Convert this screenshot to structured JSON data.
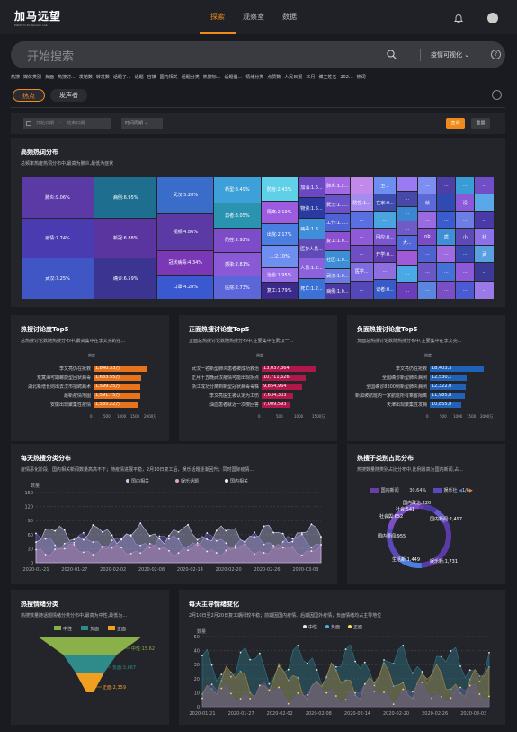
{
  "header": {
    "logo": "加马远望",
    "logo_sub": "Platform for Opinion Lab",
    "nav": [
      "探索",
      "观察室",
      "数据"
    ]
  },
  "search": {
    "placeholder": "开始搜索",
    "scope": "疫情可视化"
  },
  "hotwords": [
    "热搜",
    "媒体类别",
    "负面",
    "热搜讨...",
    "发地数",
    "转发数",
    "话题子...",
    "话题",
    "官媒",
    "国内相关",
    "话题分类",
    "热搜标...",
    "话题倡...",
    "情绪分类",
    "点赞数",
    "人民日报",
    "本月",
    "博主姓名",
    "202...",
    "热词"
  ],
  "tabs": [
    "热点",
    "发声者"
  ],
  "filters": {
    "start": "开始日期",
    "end": "结束日期",
    "period": "时间周期",
    "query": "查询",
    "reset": "重置"
  },
  "treemap": {
    "title": "高频热词分布",
    "subtitle": "总频率热度热词分布中,最高为肺炎,最低为症状",
    "cells": [
      {
        "t": "肺炎:9.06%",
        "x": 0,
        "y": 0,
        "w": 15.4,
        "h": 33.5,
        "c": "#5b3aa6"
      },
      {
        "t": "疫情:7.74%",
        "x": 0,
        "y": 33.5,
        "w": 15.4,
        "h": 33,
        "c": "#4a3bb0"
      },
      {
        "t": "武汉:7.25%",
        "x": 0,
        "y": 66.5,
        "w": 15.4,
        "h": 33.5,
        "c": "#3f56c4"
      },
      {
        "t": "病例:6.95%",
        "x": 15.4,
        "y": 0,
        "w": 13.4,
        "h": 33.5,
        "c": "#1e6f8f"
      },
      {
        "t": "新冠:6.88%",
        "x": 15.4,
        "y": 33.5,
        "w": 13.4,
        "h": 33,
        "c": "#5a35a0"
      },
      {
        "t": "确诊:6.59%",
        "x": 15.4,
        "y": 66.5,
        "w": 13.4,
        "h": 33.5,
        "c": "#3b3490"
      },
      {
        "t": "武汉:5.20%",
        "x": 28.8,
        "y": 0,
        "w": 11.9,
        "h": 30,
        "c": "#3a6cc9"
      },
      {
        "t": "视频:4.86%",
        "x": 28.8,
        "y": 30,
        "w": 11.9,
        "h": 30,
        "c": "#5b3aa6"
      },
      {
        "t": "冠状病毒:4.34%",
        "x": 28.8,
        "y": 60,
        "w": 11.9,
        "h": 20,
        "c": "#7a38b6"
      },
      {
        "t": "口罩:4.28%",
        "x": 28.8,
        "y": 80,
        "w": 11.9,
        "h": 20,
        "c": "#3a58d0"
      },
      {
        "t": "新型:3.49%",
        "x": 40.7,
        "y": 0,
        "w": 10,
        "h": 21,
        "c": "#3ea0d8"
      },
      {
        "t": "患者:3.05%",
        "x": 40.7,
        "y": 21,
        "w": 10,
        "h": 21,
        "c": "#2a93b0"
      },
      {
        "t": "防控:2.92%",
        "x": 40.7,
        "y": 42,
        "w": 10,
        "h": 19.5,
        "c": "#7d4cc8"
      },
      {
        "t": "感染:2.81%",
        "x": 40.7,
        "y": 61.5,
        "w": 10,
        "h": 19.5,
        "c": "#8a5ad6"
      },
      {
        "t": "医院:2.73%",
        "x": 40.7,
        "y": 81,
        "w": 10,
        "h": 19,
        "c": "#5b66d8"
      },
      {
        "t": "防疫:2.43%",
        "x": 50.7,
        "y": 0,
        "w": 7.8,
        "h": 20,
        "c": "#5fd0e8"
      },
      {
        "t": "隔离:2.19%",
        "x": 50.7,
        "y": 20,
        "w": 7.8,
        "h": 18,
        "c": "#9d5be0"
      },
      {
        "t": "出院:2.17%",
        "x": 50.7,
        "y": 38,
        "w": 7.8,
        "h": 18,
        "c": "#4a7ee0"
      },
      {
        "t": "...:2.10%",
        "x": 50.7,
        "y": 56,
        "w": 7.8,
        "h": 18,
        "c": "#6f8ff0"
      },
      {
        "t": "治愈:1.95%",
        "x": 50.7,
        "y": 74,
        "w": 7.8,
        "h": 12,
        "c": "#9b6fe8"
      },
      {
        "t": "复工:1.79%",
        "x": 50.7,
        "y": 86,
        "w": 7.8,
        "h": 14,
        "c": "#3b2a8c"
      },
      {
        "t": "加油:1.6...",
        "x": 58.5,
        "y": 0,
        "w": 5.8,
        "h": 17,
        "c": "#6a48c4"
      },
      {
        "t": "物资:1.5...",
        "x": 58.5,
        "y": 17,
        "w": 5.8,
        "h": 17,
        "c": "#2a3aa0"
      },
      {
        "t": "病毒:1.3...",
        "x": 58.5,
        "y": 34,
        "w": 5.8,
        "h": 17,
        "c": "#3f8fd8"
      },
      {
        "t": "医护人员...",
        "x": 58.5,
        "y": 51,
        "w": 5.8,
        "h": 15,
        "c": "#5f4ab8"
      },
      {
        "t": "人员:1.2...",
        "x": 58.5,
        "y": 66,
        "w": 5.8,
        "h": 17,
        "c": "#8c62dc"
      },
      {
        "t": "死亡:1.2...",
        "x": 58.5,
        "y": 83,
        "w": 5.8,
        "h": 17,
        "c": "#3c72d6"
      },
      {
        "t": "肺炎:1.2...",
        "x": 64.3,
        "y": 0,
        "w": 5.2,
        "h": 15,
        "c": "#a46ae4"
      },
      {
        "t": "武汉:1.1...",
        "x": 64.3,
        "y": 15,
        "w": 5.2,
        "h": 15,
        "c": "#6a52c8"
      },
      {
        "t": "工作:1.1...",
        "x": 64.3,
        "y": 30,
        "w": 5.2,
        "h": 15,
        "c": "#4f62d4"
      },
      {
        "t": "复工:1.0...",
        "x": 64.3,
        "y": 45,
        "w": 5.2,
        "h": 15,
        "c": "#8a50d0"
      },
      {
        "t": "社区:1.0...",
        "x": 64.3,
        "y": 60,
        "w": 5.2,
        "h": 15,
        "c": "#3e8ed6"
      },
      {
        "t": "武汉:1.0...",
        "x": 64.3,
        "y": 75,
        "w": 5.2,
        "h": 12,
        "c": "#6c7be2"
      },
      {
        "t": "病例:1.0...",
        "x": 64.3,
        "y": 87,
        "w": 5.2,
        "h": 13,
        "c": "#4b3aa2"
      },
      {
        "t": "...",
        "x": 69.5,
        "y": 0,
        "w": 5,
        "h": 14,
        "c": "#c28ae8"
      },
      {
        "t": "防控:1...",
        "x": 69.5,
        "y": 14,
        "w": 5,
        "h": 14,
        "c": "#a78af0"
      },
      {
        "t": "...",
        "x": 69.5,
        "y": 28,
        "w": 5,
        "h": 14,
        "c": "#5a70e0"
      },
      {
        "t": "...",
        "x": 69.5,
        "y": 42,
        "w": 5,
        "h": 14,
        "c": "#8f5ad8"
      },
      {
        "t": "...",
        "x": 69.5,
        "y": 56,
        "w": 5,
        "h": 14,
        "c": "#6f4ec4"
      },
      {
        "t": "医学...",
        "x": 69.5,
        "y": 70,
        "w": 5,
        "h": 15,
        "c": "#7f6ce0"
      },
      {
        "t": "...",
        "x": 69.5,
        "y": 85,
        "w": 5,
        "h": 15,
        "c": "#5448b8"
      },
      {
        "t": "卫...",
        "x": 74.5,
        "y": 0,
        "w": 4.8,
        "h": 14,
        "c": "#6b8ef0"
      },
      {
        "t": "在家:0...",
        "x": 74.5,
        "y": 14,
        "w": 4.8,
        "h": 14,
        "c": "#3c4cb0"
      },
      {
        "t": "...",
        "x": 74.5,
        "y": 28,
        "w": 4.8,
        "h": 14,
        "c": "#4aa4e0"
      },
      {
        "t": "回应:0...",
        "x": 74.5,
        "y": 42,
        "w": 4.8,
        "h": 14,
        "c": "#7c56d0"
      },
      {
        "t": "开学:0...",
        "x": 74.5,
        "y": 56,
        "w": 4.8,
        "h": 14,
        "c": "#5f3fb0"
      },
      {
        "t": "...",
        "x": 74.5,
        "y": 70,
        "w": 4.8,
        "h": 14,
        "c": "#8e6ee0"
      },
      {
        "t": "记者:0...",
        "x": 74.5,
        "y": 84,
        "w": 4.8,
        "h": 16,
        "c": "#3a5ac8"
      },
      {
        "t": "...",
        "x": 79.3,
        "y": 0,
        "w": 4.6,
        "h": 12,
        "c": "#9a7af0"
      },
      {
        "t": "...",
        "x": 79.3,
        "y": 12,
        "w": 4.6,
        "h": 12,
        "c": "#4848a8"
      },
      {
        "t": "...",
        "x": 79.3,
        "y": 24,
        "w": 4.6,
        "h": 12,
        "c": "#3b86d0"
      },
      {
        "t": "...",
        "x": 79.3,
        "y": 36,
        "w": 4.6,
        "h": 12,
        "c": "#6f5ac8"
      },
      {
        "t": "大...",
        "x": 79.3,
        "y": 48,
        "w": 4.6,
        "h": 12,
        "c": "#5268d8"
      },
      {
        "t": "...",
        "x": 79.3,
        "y": 60,
        "w": 4.6,
        "h": 12,
        "c": "#a05ad8"
      },
      {
        "t": "...",
        "x": 79.3,
        "y": 72,
        "w": 4.6,
        "h": 14,
        "c": "#4ba8e6"
      },
      {
        "t": "...",
        "x": 79.3,
        "y": 86,
        "w": 4.6,
        "h": 14,
        "c": "#6a3eb8"
      },
      {
        "t": "...",
        "x": 83.9,
        "y": 0,
        "w": 4,
        "h": 14,
        "c": "#7d8ef0"
      },
      {
        "t": "...",
        "x": 87.9,
        "y": 0,
        "w": 4,
        "h": 14,
        "c": "#4d3ea8"
      },
      {
        "t": "...",
        "x": 91.9,
        "y": 0,
        "w": 4,
        "h": 14,
        "c": "#3a9cd6"
      },
      {
        "t": "...",
        "x": 95.9,
        "y": 0,
        "w": 4.1,
        "h": 14,
        "c": "#6f4ec8"
      },
      {
        "t": "就",
        "x": 83.9,
        "y": 14,
        "w": 4,
        "h": 14,
        "c": "#5b6ad8"
      },
      {
        "t": "...",
        "x": 87.9,
        "y": 14,
        "w": 4,
        "h": 14,
        "c": "#2f4ab0"
      },
      {
        "t": "没",
        "x": 91.9,
        "y": 14,
        "w": 4,
        "h": 14,
        "c": "#8a5ad8"
      },
      {
        "t": "...",
        "x": 95.9,
        "y": 14,
        "w": 4.1,
        "h": 14,
        "c": "#5aa8e8"
      },
      {
        "t": "...",
        "x": 83.9,
        "y": 28,
        "w": 4,
        "h": 14,
        "c": "#9a6ae0"
      },
      {
        "t": "...",
        "x": 87.9,
        "y": 28,
        "w": 4,
        "h": 14,
        "c": "#3b5ccc"
      },
      {
        "t": "...",
        "x": 91.9,
        "y": 28,
        "w": 4,
        "h": 14,
        "c": "#6c7ee4"
      },
      {
        "t": "...",
        "x": 95.9,
        "y": 28,
        "w": 4.1,
        "h": 14,
        "c": "#4a3aa8"
      },
      {
        "t": "nb",
        "x": 83.9,
        "y": 42,
        "w": 4,
        "h": 14,
        "c": "#7a4cc8"
      },
      {
        "t": "盾",
        "x": 87.9,
        "y": 42,
        "w": 4,
        "h": 14,
        "c": "#3f8fd8"
      },
      {
        "t": "小",
        "x": 91.9,
        "y": 42,
        "w": 4,
        "h": 14,
        "c": "#5d4ab8"
      },
      {
        "t": "社",
        "x": 95.9,
        "y": 42,
        "w": 4.1,
        "h": 14,
        "c": "#8b72e8"
      },
      {
        "t": "...",
        "x": 83.9,
        "y": 56,
        "w": 4,
        "h": 14,
        "c": "#4e62d0"
      },
      {
        "t": "...",
        "x": 87.9,
        "y": 56,
        "w": 4,
        "h": 14,
        "c": "#a06ae0"
      },
      {
        "t": "...",
        "x": 91.9,
        "y": 56,
        "w": 4,
        "h": 14,
        "c": "#3a4ab0"
      },
      {
        "t": "武",
        "x": 95.9,
        "y": 56,
        "w": 4.1,
        "h": 14,
        "c": "#5aa0e0"
      },
      {
        "t": "...",
        "x": 83.9,
        "y": 70,
        "w": 4,
        "h": 15,
        "c": "#6b56c8"
      },
      {
        "t": "...",
        "x": 87.9,
        "y": 70,
        "w": 4,
        "h": 15,
        "c": "#4570d8"
      },
      {
        "t": "...",
        "x": 91.9,
        "y": 70,
        "w": 4,
        "h": 15,
        "c": "#8c5ad8"
      },
      {
        "t": "...",
        "x": 95.9,
        "y": 70,
        "w": 4.1,
        "h": 15,
        "c": "#3b3a98"
      },
      {
        "t": "...",
        "x": 83.9,
        "y": 85,
        "w": 4,
        "h": 15,
        "c": "#5a86e0"
      },
      {
        "t": "...",
        "x": 87.9,
        "y": 85,
        "w": 4,
        "h": 15,
        "c": "#7a4ec4"
      },
      {
        "t": "...",
        "x": 91.9,
        "y": 85,
        "w": 4,
        "h": 15,
        "c": "#4b5ad0"
      },
      {
        "t": "...",
        "x": 95.9,
        "y": 85,
        "w": 4.1,
        "h": 15,
        "c": "#9a7ae8"
      }
    ]
  },
  "top5": [
    {
      "title": "热搜讨论度Top5",
      "subtitle": "总热搜讨论数随热搜分布中,最高集中在李文亮的在...",
      "legend": "热度",
      "color": "#e8731a",
      "rows": [
        {
          "l": "李文亮仍在抢救",
          "v": "1,840.33万",
          "p": 1
        },
        {
          "l": "荒寞海可期螺旋型回状病毒",
          "v": "1,633.55万",
          "p": 0.89
        },
        {
          "l": "湖北新增长则出去汉市招聘病术",
          "v": "1,599.25万",
          "p": 0.87
        },
        {
          "l": "最新疫情地图",
          "v": "1,591.75万",
          "p": 0.865
        },
        {
          "l": "安徽出现聚集性疫情",
          "v": "1,535.22万",
          "p": 0.834
        }
      ],
      "axis": [
        "0",
        "500",
        "1000",
        "1500",
        "2000万"
      ]
    },
    {
      "title": "正面热搜讨论度Top5",
      "subtitle": "正面总热搜讨论数随热搜分布中,主要集中在武汉一...",
      "legend": "热度",
      "color": "#b0184a",
      "rows": [
        {
          "l": "武汉一名新型肺炎患者被成功救治",
          "v": "13,037,364",
          "p": 1
        },
        {
          "l": "正月十五晚武汉疫情可能出现拐点",
          "v": "10,711,626",
          "p": 0.82
        },
        {
          "l": "浙江成功分离到新型冠状病毒毒株",
          "v": "9,854,964",
          "p": 0.756
        },
        {
          "l": "李文亮医生被认定为工伤",
          "v": "7,634,303",
          "p": 0.586
        },
        {
          "l": "油血患者就近一次慢回答",
          "v": "7,009,593",
          "p": 0.538
        }
      ],
      "axis": [
        "0",
        "500",
        "1000",
        "1500万"
      ]
    },
    {
      "title": "负面热搜讨论度Top5",
      "subtitle": "负面总热搜讨论数随热搜分布中,主要集中在李文亮...",
      "legend": "热度",
      "color": "#1f62b8",
      "rows": [
        {
          "l": "李文亮仍在抢救",
          "v": "18,403,3",
          "p": 1
        },
        {
          "l": "全国确诊新型肺炎病例",
          "v": "12,530,1",
          "p": 0.68
        },
        {
          "l": "全国确诊8300例新型肺炎病例",
          "v": "12,322,0",
          "p": 0.67
        },
        {
          "l": "新加坡航班内一家航班所有乘客隔离",
          "v": "11,985,8",
          "p": 0.65
        },
        {
          "l": "天津出现聚集性发病",
          "v": "10,855,8",
          "p": 0.59
        }
      ],
      "axis": [
        "0",
        "500",
        "1000",
        "1500",
        "2000万"
      ]
    }
  ],
  "daily": {
    "title": "每天热搜分类分布",
    "subtitle": "疫情恶化阶段，国内相关新闻数量高高不下；随疫情进展平稳，2月10日复工后，娱乐话题逐渐回升；同时国际疫情...",
    "ylabel": "数量",
    "legend": [
      "国内相关",
      "娱乐话题",
      "国内相关"
    ],
    "yticks": [
      "0",
      "30",
      "60",
      "90",
      "120",
      "150"
    ],
    "xticks": [
      "2020-01-21",
      "2020-01-27",
      "2020-02-02",
      "2020-02-08",
      "2020-02-14",
      "2020-02-20",
      "2020-02-26",
      "2020-03-03"
    ]
  },
  "donut": {
    "title": "热搜子类别占比分布",
    "subtitle": "热搜数量随类别占比分布中,比例最高为国内新闻,占...",
    "legend": [
      "国内新闻",
      "30.64%",
      "娱乐社",
      "1/6"
    ],
    "labels": [
      "国内政治:220",
      "社会:541",
      "社会舆:652",
      "国内新闻:2,497",
      "国内要闻:955",
      "生活新:1,449",
      "娱乐新:1,731"
    ]
  },
  "emotion": {
    "title": "热搜情绪分类",
    "subtitle": "热搜数量随话题情绪分类分布中,最高为中性,最低为...",
    "legend": [
      "中性",
      "负面",
      "正面"
    ],
    "labels": [
      "中性:15.62",
      "负面:3,667",
      "正面:2,359"
    ]
  },
  "mood": {
    "title": "每天主导情绪变化",
    "subtitle": "2月10日至2月20日复工期间较平稳；前期因国内疫情、后期因国外疫情，负面情绪均占主导地位",
    "ylabel": "数量",
    "legend": [
      "中性",
      "负面",
      "正面"
    ],
    "yticks": [
      "0",
      "10",
      "20",
      "30",
      "40",
      "50"
    ],
    "xticks": [
      "2020-01-21",
      "2020-01-27",
      "2020-02-02",
      "2020-02-08",
      "2020-02-14",
      "2020-02-20",
      "2020-02-26",
      "2020-03-03"
    ]
  },
  "colors": {
    "accent": "#f08a1a",
    "bg": "#1a1b20",
    "panel": "#24252b"
  }
}
